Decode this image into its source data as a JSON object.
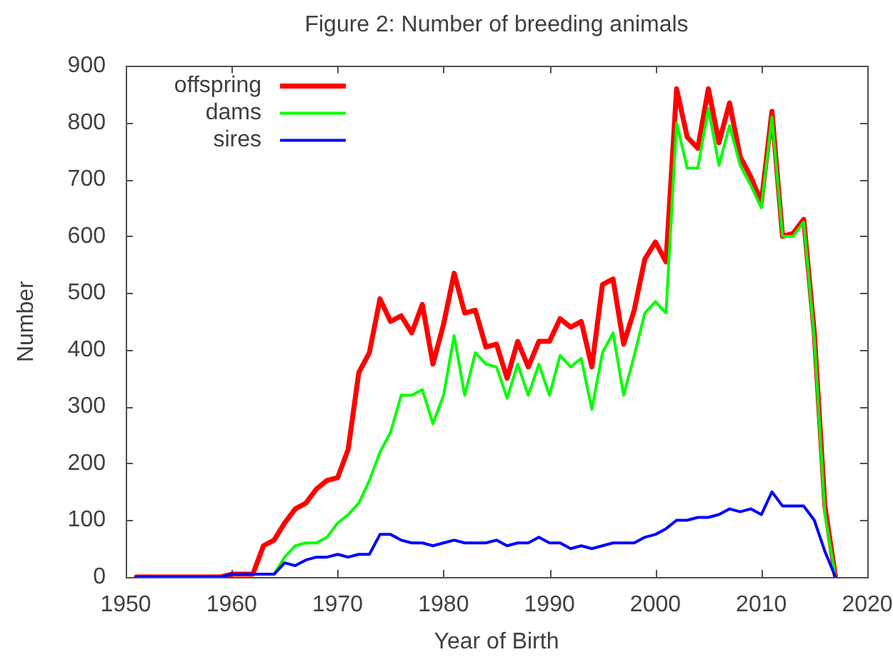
{
  "chart_data": {
    "type": "line",
    "title": "Figure 2: Number of breeding animals",
    "xlabel": "Year of Birth",
    "ylabel": "Number",
    "x": [
      1951,
      1952,
      1953,
      1954,
      1955,
      1956,
      1957,
      1958,
      1959,
      1960,
      1961,
      1962,
      1963,
      1964,
      1965,
      1966,
      1967,
      1968,
      1969,
      1970,
      1971,
      1972,
      1973,
      1974,
      1975,
      1976,
      1977,
      1978,
      1979,
      1980,
      1981,
      1982,
      1983,
      1984,
      1985,
      1986,
      1987,
      1988,
      1989,
      1990,
      1991,
      1992,
      1993,
      1994,
      1995,
      1996,
      1997,
      1998,
      1999,
      2000,
      2001,
      2002,
      2003,
      2004,
      2005,
      2006,
      2007,
      2008,
      2009,
      2010,
      2011,
      2012,
      2013,
      2014,
      2015,
      2016,
      2017
    ],
    "series": [
      {
        "name": "offspring",
        "color": "#ff0000",
        "values": [
          0,
          0,
          0,
          0,
          0,
          0,
          0,
          0,
          0,
          5,
          5,
          5,
          55,
          65,
          95,
          120,
          130,
          155,
          170,
          175,
          225,
          360,
          395,
          490,
          450,
          460,
          430,
          480,
          375,
          445,
          535,
          465,
          470,
          405,
          410,
          350,
          415,
          370,
          415,
          415,
          455,
          440,
          450,
          370,
          515,
          525,
          410,
          470,
          560,
          590,
          555,
          860,
          775,
          755,
          860,
          765,
          835,
          740,
          705,
          660,
          820,
          600,
          605,
          630,
          430,
          125,
          0
        ]
      },
      {
        "name": "dams",
        "color": "#00ff00",
        "x": [
          1964,
          1965,
          1966,
          1967,
          1968,
          1969,
          1970,
          1971,
          1972,
          1973,
          1974,
          1975,
          1976,
          1977,
          1978,
          1979,
          1980,
          1981,
          1982,
          1983,
          1984,
          1985,
          1986,
          1987,
          1988,
          1989,
          1990,
          1991,
          1992,
          1993,
          1994,
          1995,
          1996,
          1997,
          1998,
          1999,
          2000,
          2001,
          2002,
          2003,
          2004,
          2005,
          2006,
          2007,
          2008,
          2009,
          2010,
          2011,
          2012,
          2013,
          2014,
          2015,
          2016,
          2017
        ],
        "values": [
          5,
          35,
          55,
          60,
          60,
          70,
          95,
          110,
          130,
          170,
          220,
          255,
          320,
          320,
          330,
          270,
          320,
          425,
          320,
          395,
          375,
          370,
          315,
          375,
          320,
          375,
          320,
          390,
          370,
          385,
          295,
          395,
          430,
          320,
          390,
          465,
          485,
          465,
          800,
          720,
          720,
          825,
          725,
          795,
          725,
          690,
          650,
          810,
          600,
          600,
          625,
          420,
          110,
          0
        ]
      },
      {
        "name": "sires",
        "color": "#0000ff",
        "values": [
          0,
          0,
          0,
          0,
          0,
          0,
          0,
          0,
          0,
          5,
          5,
          5,
          5,
          5,
          25,
          20,
          30,
          35,
          35,
          40,
          35,
          40,
          40,
          75,
          75,
          65,
          60,
          60,
          55,
          60,
          65,
          60,
          60,
          60,
          65,
          55,
          60,
          60,
          70,
          60,
          60,
          50,
          55,
          50,
          55,
          60,
          60,
          60,
          70,
          75,
          85,
          100,
          100,
          105,
          105,
          110,
          120,
          115,
          120,
          110,
          150,
          125,
          125,
          125,
          100,
          45,
          0
        ]
      }
    ],
    "xlim": [
      1950,
      2020
    ],
    "xticks": [
      1950,
      1960,
      1970,
      1980,
      1990,
      2000,
      2010,
      2020
    ],
    "ylim": [
      0,
      900
    ],
    "yticks": [
      0,
      100,
      200,
      300,
      400,
      500,
      600,
      700,
      800,
      900
    ],
    "legend": "top left",
    "marker": "none",
    "line_style": "solid"
  }
}
